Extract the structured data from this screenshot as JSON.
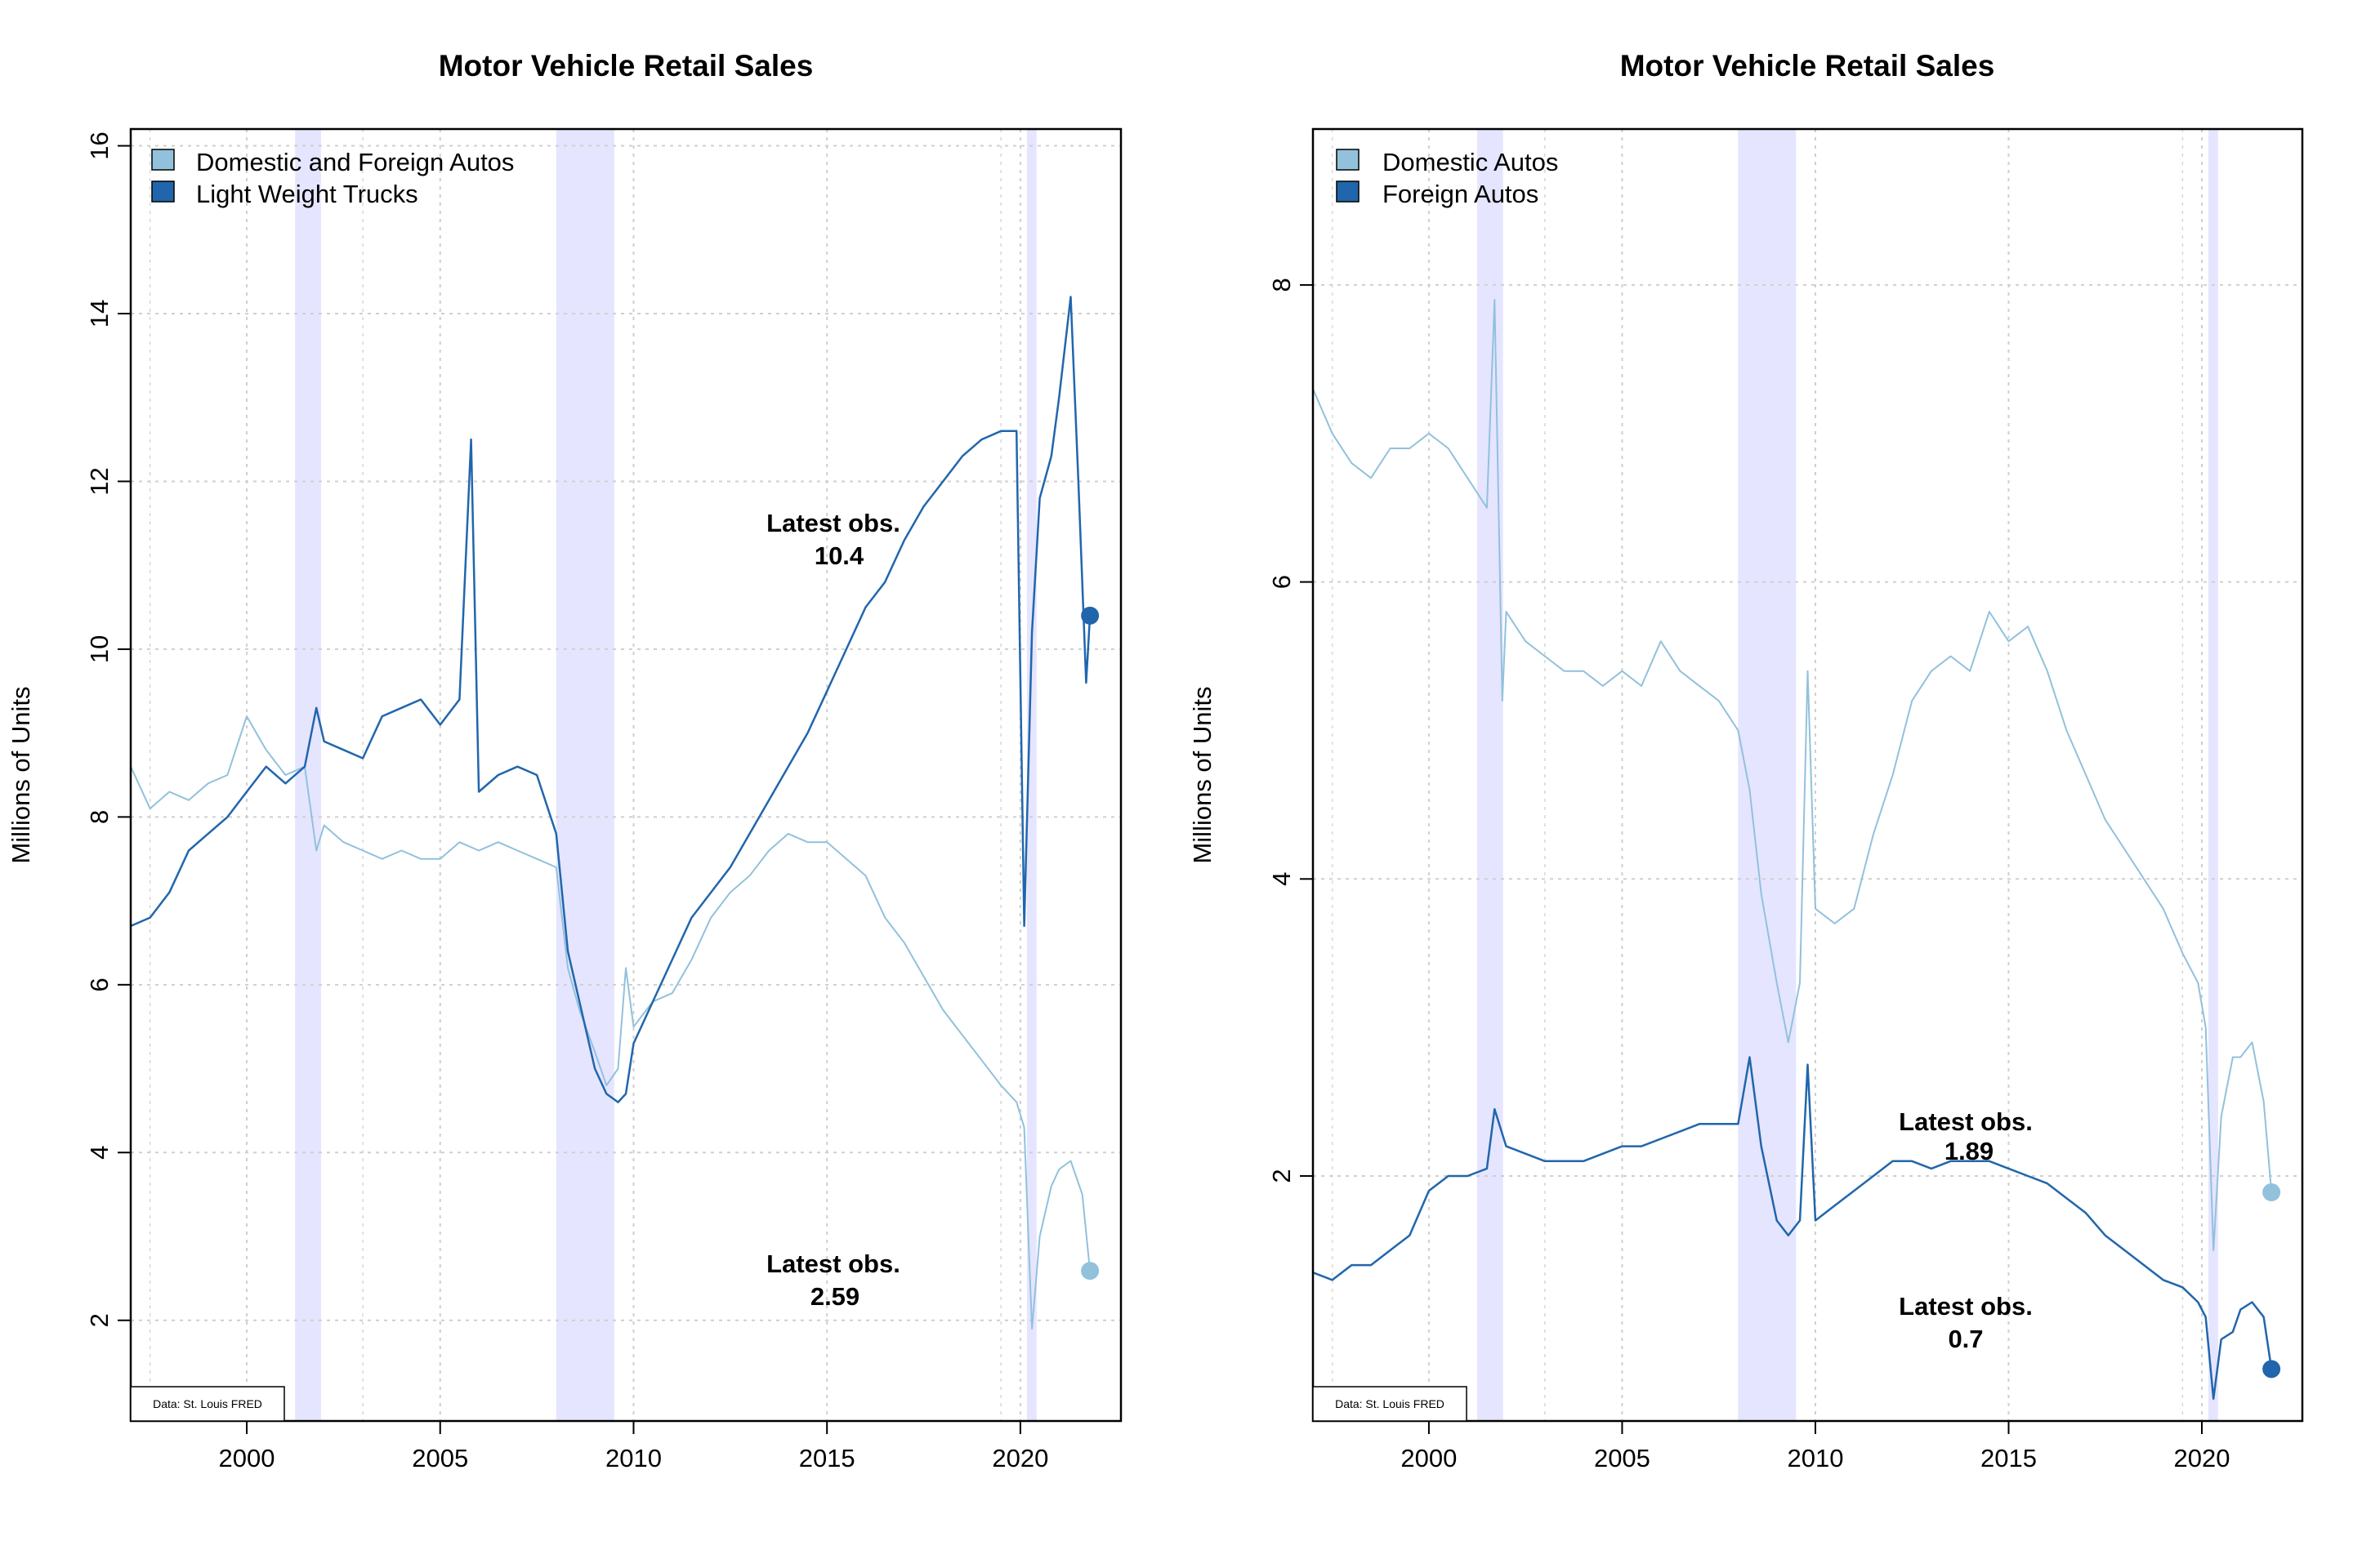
{
  "chart_data": [
    {
      "type": "line",
      "title": "Motor Vehicle Retail Sales",
      "ylabel": "Millions of Units",
      "xlabel": "",
      "xlim": [
        1997.0,
        2022.6
      ],
      "ylim": [
        0.8,
        16.2
      ],
      "xticks": [
        2000,
        2005,
        2010,
        2015,
        2020
      ],
      "yticks": [
        2,
        4,
        6,
        8,
        10,
        12,
        14,
        16
      ],
      "grid": true,
      "legend": "top-left",
      "source_note": "Data: St. Louis FRED",
      "recessions": [
        [
          2001.25,
          2001.92
        ],
        [
          2008.0,
          2009.5
        ],
        [
          2020.17,
          2020.42
        ]
      ],
      "series": [
        {
          "name": "Domestic and Foreign Autos",
          "color": "#92C1DC",
          "x": [
            1997.0,
            1997.5,
            1998.0,
            1998.5,
            1999.0,
            1999.5,
            2000.0,
            2000.5,
            2001.0,
            2001.5,
            2001.8,
            2002.0,
            2002.5,
            2003.0,
            2003.5,
            2004.0,
            2004.5,
            2005.0,
            2005.5,
            2006.0,
            2006.5,
            2007.0,
            2007.5,
            2008.0,
            2008.3,
            2008.6,
            2009.0,
            2009.3,
            2009.6,
            2009.8,
            2010.0,
            2010.5,
            2011.0,
            2011.5,
            2012.0,
            2012.5,
            2013.0,
            2013.5,
            2014.0,
            2014.5,
            2015.0,
            2015.5,
            2016.0,
            2016.5,
            2017.0,
            2017.5,
            2018.0,
            2018.5,
            2019.0,
            2019.5,
            2019.9,
            2020.1,
            2020.3,
            2020.5,
            2020.8,
            2021.0,
            2021.3,
            2021.6,
            2021.8
          ],
          "values": [
            8.6,
            8.1,
            8.3,
            8.2,
            8.4,
            8.5,
            9.2,
            8.8,
            8.5,
            8.6,
            7.6,
            7.9,
            7.7,
            7.6,
            7.5,
            7.6,
            7.5,
            7.5,
            7.7,
            7.6,
            7.7,
            7.6,
            7.5,
            7.4,
            6.2,
            5.7,
            5.2,
            4.8,
            5.0,
            6.2,
            5.5,
            5.8,
            5.9,
            6.3,
            6.8,
            7.1,
            7.3,
            7.6,
            7.8,
            7.7,
            7.7,
            7.5,
            7.3,
            6.8,
            6.5,
            6.1,
            5.7,
            5.4,
            5.1,
            4.8,
            4.6,
            4.3,
            1.9,
            3.0,
            3.6,
            3.8,
            3.9,
            3.5,
            2.59
          ]
        },
        {
          "name": "Light Weight Trucks",
          "color": "#2166AC",
          "x": [
            1997.0,
            1997.5,
            1998.0,
            1998.5,
            1999.0,
            1999.5,
            2000.0,
            2000.5,
            2001.0,
            2001.5,
            2001.8,
            2002.0,
            2002.5,
            2003.0,
            2003.5,
            2004.0,
            2004.5,
            2005.0,
            2005.5,
            2005.8,
            2006.0,
            2006.5,
            2007.0,
            2007.5,
            2008.0,
            2008.3,
            2008.6,
            2009.0,
            2009.3,
            2009.6,
            2009.8,
            2010.0,
            2010.5,
            2011.0,
            2011.5,
            2012.0,
            2012.5,
            2013.0,
            2013.5,
            2014.0,
            2014.5,
            2015.0,
            2015.5,
            2016.0,
            2016.5,
            2017.0,
            2017.5,
            2018.0,
            2018.5,
            2019.0,
            2019.5,
            2019.9,
            2020.1,
            2020.3,
            2020.5,
            2020.8,
            2021.0,
            2021.3,
            2021.5,
            2021.7,
            2021.8
          ],
          "values": [
            6.7,
            6.8,
            7.1,
            7.6,
            7.8,
            8.0,
            8.3,
            8.6,
            8.4,
            8.6,
            9.3,
            8.9,
            8.8,
            8.7,
            9.2,
            9.3,
            9.4,
            9.1,
            9.4,
            12.5,
            8.3,
            8.5,
            8.6,
            8.5,
            7.8,
            6.4,
            5.8,
            5.0,
            4.7,
            4.6,
            4.7,
            5.3,
            5.8,
            6.3,
            6.8,
            7.1,
            7.4,
            7.8,
            8.2,
            8.6,
            9.0,
            9.5,
            10.0,
            10.5,
            10.8,
            11.3,
            11.7,
            12.0,
            12.3,
            12.5,
            12.6,
            12.6,
            6.7,
            10.2,
            11.8,
            12.3,
            13.0,
            14.2,
            12.0,
            9.6,
            10.4
          ]
        }
      ],
      "annotations": [
        {
          "label": "Latest obs.",
          "value": "10.4"
        },
        {
          "label": "Latest obs.",
          "value": "2.59"
        }
      ]
    },
    {
      "type": "line",
      "title": "Motor Vehicle Retail Sales",
      "ylabel": "Millions of Units",
      "xlabel": "",
      "xlim": [
        1997.0,
        2022.6
      ],
      "ylim": [
        0.35,
        9.05
      ],
      "xticks": [
        2000,
        2005,
        2010,
        2015,
        2020
      ],
      "yticks": [
        2,
        4,
        6,
        8
      ],
      "grid": true,
      "legend": "top-left",
      "source_note": "Data: St. Louis FRED",
      "recessions": [
        [
          2001.25,
          2001.92
        ],
        [
          2008.0,
          2009.5
        ],
        [
          2020.17,
          2020.42
        ]
      ],
      "series": [
        {
          "name": "Domestic Autos",
          "color": "#92C1DC",
          "x": [
            1997.0,
            1997.5,
            1998.0,
            1998.5,
            1999.0,
            1999.5,
            2000.0,
            2000.5,
            2001.0,
            2001.5,
            2001.7,
            2001.9,
            2002.0,
            2002.5,
            2003.0,
            2003.5,
            2004.0,
            2004.5,
            2005.0,
            2005.5,
            2006.0,
            2006.5,
            2007.0,
            2007.5,
            2008.0,
            2008.3,
            2008.6,
            2009.0,
            2009.3,
            2009.6,
            2009.8,
            2010.0,
            2010.5,
            2011.0,
            2011.5,
            2012.0,
            2012.5,
            2013.0,
            2013.5,
            2014.0,
            2014.5,
            2015.0,
            2015.5,
            2016.0,
            2016.5,
            2017.0,
            2017.5,
            2018.0,
            2018.5,
            2019.0,
            2019.5,
            2019.9,
            2020.1,
            2020.3,
            2020.5,
            2020.8,
            2021.0,
            2021.3,
            2021.6,
            2021.8
          ],
          "values": [
            7.3,
            7.0,
            6.8,
            6.7,
            6.9,
            6.9,
            7.0,
            6.9,
            6.7,
            6.5,
            7.9,
            5.2,
            5.8,
            5.6,
            5.5,
            5.4,
            5.4,
            5.3,
            5.4,
            5.3,
            5.6,
            5.4,
            5.3,
            5.2,
            5.0,
            4.6,
            3.9,
            3.3,
            2.9,
            3.3,
            5.4,
            3.8,
            3.7,
            3.8,
            4.3,
            4.7,
            5.2,
            5.4,
            5.5,
            5.4,
            5.8,
            5.6,
            5.7,
            5.4,
            5.0,
            4.7,
            4.4,
            4.2,
            4.0,
            3.8,
            3.5,
            3.3,
            3.0,
            1.5,
            2.4,
            2.8,
            2.8,
            2.9,
            2.5,
            1.89
          ]
        },
        {
          "name": "Foreign Autos",
          "color": "#2166AC",
          "x": [
            1997.0,
            1997.5,
            1998.0,
            1998.5,
            1999.0,
            1999.5,
            2000.0,
            2000.5,
            2001.0,
            2001.5,
            2001.7,
            2002.0,
            2002.5,
            2003.0,
            2003.5,
            2004.0,
            2004.5,
            2005.0,
            2005.5,
            2006.0,
            2006.5,
            2007.0,
            2007.5,
            2008.0,
            2008.3,
            2008.6,
            2009.0,
            2009.3,
            2009.6,
            2009.8,
            2010.0,
            2010.5,
            2011.0,
            2011.5,
            2012.0,
            2012.5,
            2013.0,
            2013.5,
            2014.0,
            2014.5,
            2015.0,
            2015.5,
            2016.0,
            2016.5,
            2017.0,
            2017.5,
            2018.0,
            2018.5,
            2019.0,
            2019.5,
            2019.9,
            2020.1,
            2020.3,
            2020.5,
            2020.8,
            2021.0,
            2021.3,
            2021.6,
            2021.8
          ],
          "values": [
            1.35,
            1.3,
            1.4,
            1.4,
            1.5,
            1.6,
            1.9,
            2.0,
            2.0,
            2.05,
            2.45,
            2.2,
            2.15,
            2.1,
            2.1,
            2.1,
            2.15,
            2.2,
            2.2,
            2.25,
            2.3,
            2.35,
            2.35,
            2.35,
            2.8,
            2.2,
            1.7,
            1.6,
            1.7,
            2.75,
            1.7,
            1.8,
            1.9,
            2.0,
            2.1,
            2.1,
            2.05,
            2.1,
            2.1,
            2.1,
            2.05,
            2.0,
            1.95,
            1.85,
            1.75,
            1.6,
            1.5,
            1.4,
            1.3,
            1.25,
            1.15,
            1.05,
            0.5,
            0.9,
            0.95,
            1.1,
            1.15,
            1.05,
            0.7
          ]
        }
      ],
      "annotations": [
        {
          "label": "Latest obs.",
          "value": "1.89"
        },
        {
          "label": "Latest obs.",
          "value": "0.7"
        }
      ]
    }
  ]
}
